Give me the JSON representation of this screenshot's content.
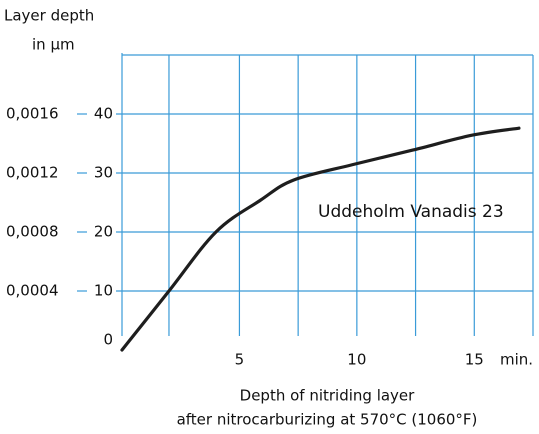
{
  "chart_data": {
    "type": "line",
    "y_title": "Layer depth",
    "y_unit": "in  µm",
    "x_unit": "min.",
    "x_title": [
      "Depth of nitriding layer",
      "after nitrocarburizing at 570°C (1060°F)"
    ],
    "series": [
      {
        "name": "Uddeholm Vanadis 23",
        "color": "#1e1e1e",
        "x": [
          0,
          2,
          4,
          5.9,
          7.3,
          9.8,
          12.4,
          14.9,
          16.9
        ],
        "values": [
          0,
          10,
          20,
          25.4,
          28.8,
          31.4,
          33.9,
          36.4,
          37.6
        ]
      }
    ],
    "xlim": [
      0,
      17.5
    ],
    "xticks": [
      5,
      10,
      15
    ],
    "x_minor_grid": [
      2,
      7.5,
      12.5,
      17.5
    ],
    "ylim": [
      0,
      50
    ],
    "yticks": [
      0,
      10,
      20,
      30,
      40
    ],
    "y_grid_top": 50,
    "y2lim": [
      0,
      0.002
    ],
    "y2ticks": [
      {
        "value": 0.0004,
        "label": "0,0004"
      },
      {
        "value": 0.0008,
        "label": "0,0008"
      },
      {
        "value": 0.0012,
        "label": "0,0012"
      },
      {
        "value": 0.0016,
        "label": "0,0016"
      }
    ],
    "grid": true
  }
}
